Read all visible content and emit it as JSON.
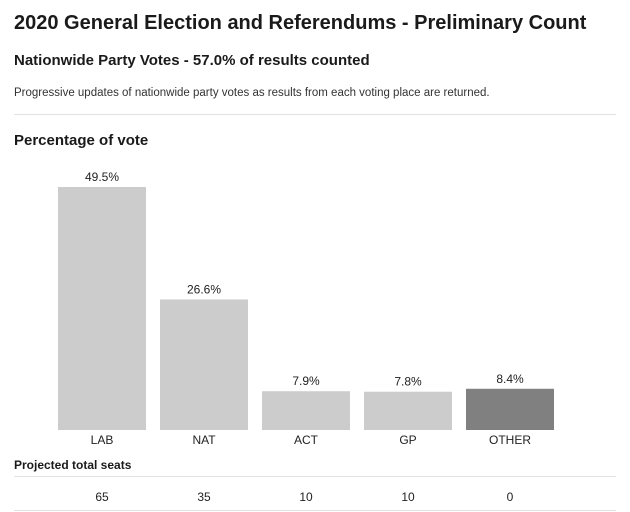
{
  "header": {
    "title": "2020 General Election and Referendums - Preliminary Count",
    "subtitle": "Nationwide Party Votes - 57.0% of results counted",
    "description": "Progressive updates of nationwide party votes as results from each voting place are returned."
  },
  "chart_data": {
    "type": "bar",
    "title": "Percentage of vote",
    "categories": [
      "LAB",
      "NAT",
      "ACT",
      "GP",
      "OTHER"
    ],
    "values": [
      49.5,
      26.6,
      7.9,
      7.8,
      8.4
    ],
    "value_labels": [
      "49.5%",
      "26.6%",
      "7.9%",
      "7.8%",
      "8.4%"
    ],
    "colors": [
      "#cccccc",
      "#cccccc",
      "#cccccc",
      "#cccccc",
      "#808080"
    ],
    "xlabel": "",
    "ylabel": "",
    "ylim": [
      0,
      55
    ],
    "grid": false,
    "legend": "none"
  },
  "seats": {
    "heading": "Projected total seats",
    "values": [
      "65",
      "35",
      "10",
      "10",
      "0"
    ]
  }
}
